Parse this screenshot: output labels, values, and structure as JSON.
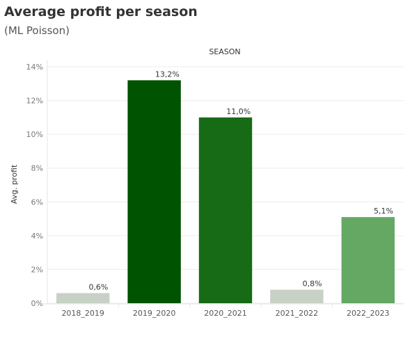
{
  "chart_data": {
    "type": "bar",
    "title": "Average profit per season",
    "subtitle": "(ML Poisson)",
    "column_header": "SEASON",
    "xlabel": "",
    "ylabel": "Avg. profit",
    "categories": [
      "2018_2019",
      "2019_2020",
      "2020_2021",
      "2021_2022",
      "2022_2023"
    ],
    "values": [
      0.6,
      13.2,
      11.0,
      0.8,
      5.1
    ],
    "data_labels": [
      "0,6%",
      "13,2%",
      "11,0%",
      "0,8%",
      "5,1%"
    ],
    "colors": [
      "#c8d1c6",
      "#005300",
      "#176b17",
      "#c8d1c6",
      "#64a864"
    ],
    "ylim": [
      0,
      14
    ],
    "yticks": [
      0,
      2,
      4,
      6,
      8,
      10,
      12,
      14
    ],
    "ytick_labels": [
      "0%",
      "2%",
      "4%",
      "6%",
      "8%",
      "10%",
      "12%",
      "14%"
    ],
    "grid": true
  }
}
